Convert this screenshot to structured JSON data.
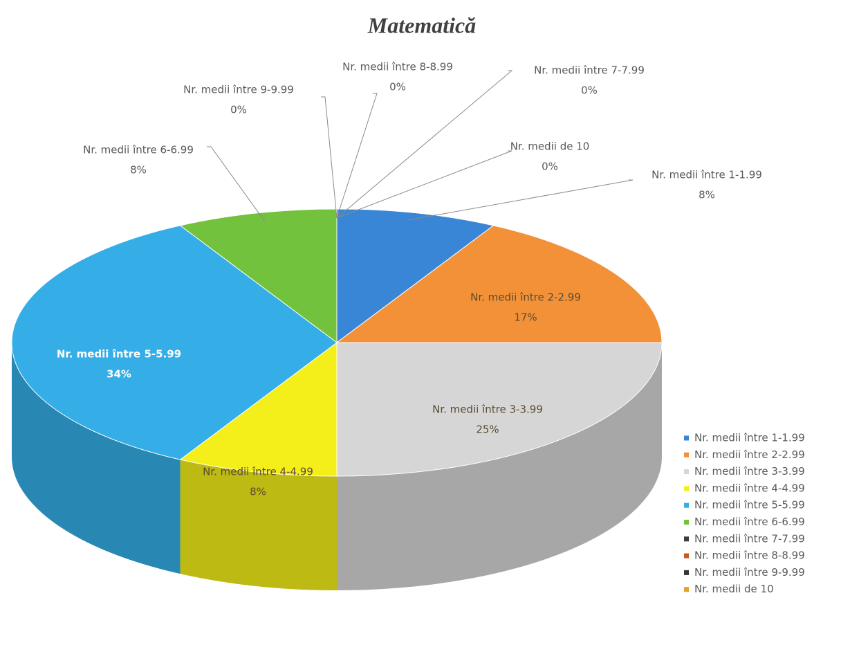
{
  "chart_data": {
    "type": "pie",
    "title": "Matematică",
    "categories": [
      "Nr. medii între 1-1.99",
      "Nr. medii între 2-2.99",
      "Nr. medii între 3-3.99",
      "Nr. medii între 4-4.99",
      "Nr. medii între 5-5.99",
      "Nr. medii între 6-6.99",
      "Nr. medii între 7-7.99",
      "Nr. medii între 8-8.99",
      "Nr. medii între 9-9.99",
      "Nr. medii de 10"
    ],
    "values": [
      8,
      17,
      25,
      8,
      34,
      8,
      0,
      0,
      0,
      0
    ],
    "value_labels": [
      "8%",
      "17%",
      "25%",
      "8%",
      "34%",
      "8%",
      "0%",
      "0%",
      "0%",
      "0%"
    ],
    "colors": [
      "#3a86d6",
      "#f39138",
      "#d6d6d6",
      "#f4ef1a",
      "#35ade6",
      "#72c23e",
      "#3c3c44",
      "#c65a1e",
      "#34343c",
      "#e6a226"
    ],
    "legend": "right"
  }
}
